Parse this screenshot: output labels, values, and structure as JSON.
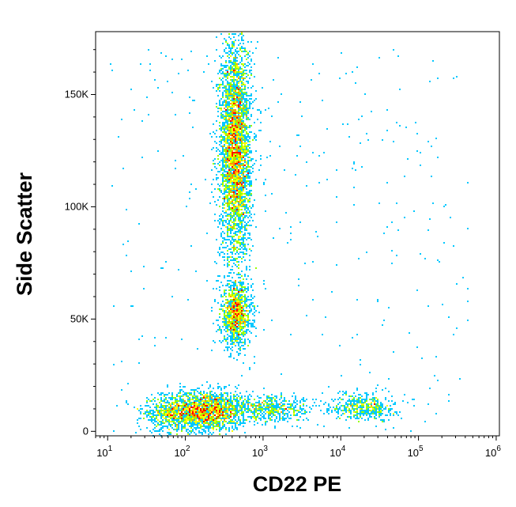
{
  "chart_data": {
    "type": "scatter",
    "subtype": "flow-cytometry-density-dot-plot",
    "xlabel": "CD22 PE",
    "ylabel": "Side Scatter",
    "x_scale": "log",
    "xlim": [
      7,
      1100000
    ],
    "ylim": [
      -2000,
      178000
    ],
    "x_ticks": [
      {
        "base": "10",
        "exp": "1",
        "value": 10
      },
      {
        "base": "10",
        "exp": "2",
        "value": 100
      },
      {
        "base": "10",
        "exp": "3",
        "value": 1000
      },
      {
        "base": "10",
        "exp": "4",
        "value": 10000
      },
      {
        "base": "10",
        "exp": "5",
        "value": 100000
      },
      {
        "base": "10",
        "exp": "6",
        "value": 1000000
      }
    ],
    "y_ticks": [
      {
        "label": "0",
        "value": 0
      },
      {
        "label": "50K",
        "value": 50000
      },
      {
        "label": "100K",
        "value": 100000
      },
      {
        "label": "150K",
        "value": 150000
      }
    ],
    "colormap": [
      "#0000c8",
      "#0064ff",
      "#00c8ff",
      "#00ff96",
      "#96ff00",
      "#ffff00",
      "#ff9600",
      "#ff0000"
    ],
    "populations": [
      {
        "x_center": 180,
        "y_center": 9000,
        "x_spread_decades": 0.28,
        "y_spread": 4500,
        "weight": 0.22
      },
      {
        "x_center": 450,
        "y_center": 52000,
        "x_spread_decades": 0.1,
        "y_spread": 7000,
        "weight": 0.12
      },
      {
        "x_center": 440,
        "y_center": 125000,
        "x_spread_decades": 0.1,
        "y_spread": 25000,
        "weight": 0.42
      },
      {
        "x_center": 20000,
        "y_center": 11000,
        "x_spread_decades": 0.2,
        "y_spread": 3000,
        "weight": 0.05
      },
      {
        "x_center": 1500,
        "y_center": 10000,
        "x_spread_decades": 0.25,
        "y_spread": 3000,
        "weight": 0.05
      },
      {
        "x_center": 60,
        "y_center": 8000,
        "x_spread_decades": 0.2,
        "y_spread": 4000,
        "weight": 0.04
      }
    ]
  }
}
